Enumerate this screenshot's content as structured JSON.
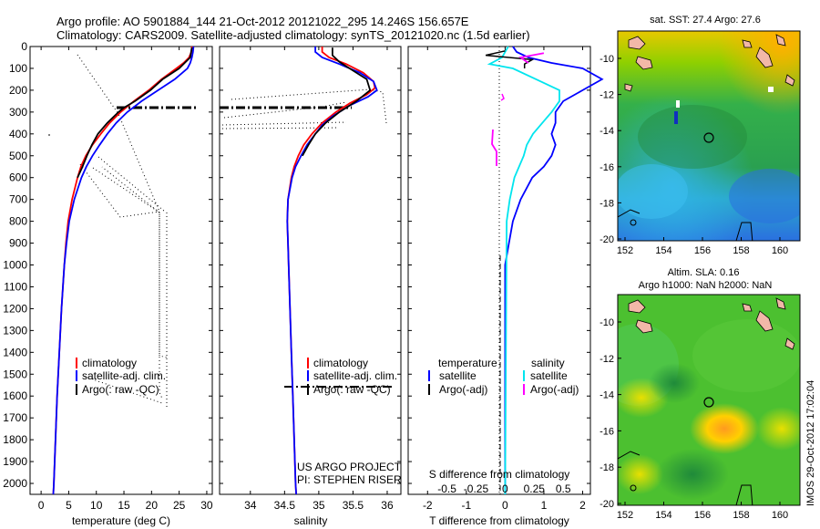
{
  "header": {
    "line1": "Argo profile: AO 5901884_144 21-Oct-2012 20121022_295 14.246S 156.657E",
    "line2": "Climatology: CARS2009. Satellite-adjusted climatology: synTS_20121020.nc (1.5d earlier)"
  },
  "colors": {
    "climatology": "#ff0000",
    "satellite": "#0000ff",
    "argo": "#000000",
    "sat_salinity": "#00e5ee",
    "argo_salinity": "#ff00ff",
    "land": "#f2b8a8"
  },
  "depth_axis": {
    "min": 0,
    "max": 2050,
    "ticks": [
      0,
      100,
      200,
      300,
      400,
      500,
      600,
      700,
      800,
      900,
      1000,
      1100,
      1200,
      1300,
      1400,
      1500,
      1600,
      1700,
      1800,
      1900,
      2000
    ]
  },
  "chart_data": [
    {
      "type": "line",
      "id": "temperature",
      "xlabel": "temperature (deg C)",
      "xlim": [
        -2,
        31
      ],
      "ylim": [
        2050,
        0
      ],
      "xticks": [
        0,
        5,
        10,
        15,
        20,
        25,
        30
      ],
      "legend": {
        "position": "bottom-right",
        "entries": [
          "climatology",
          "satellite-adj. clim.",
          "Argo(: raw -QC)"
        ]
      },
      "series": [
        {
          "name": "climatology",
          "depth": [
            0,
            25,
            50,
            75,
            100,
            150,
            200,
            250,
            300,
            350,
            400,
            450,
            500,
            550,
            600,
            700,
            800,
            900,
            1000,
            1200,
            1400,
            1600,
            1800,
            2000,
            2050
          ],
          "values": [
            27.3,
            27.2,
            26.8,
            25.8,
            24.5,
            21.8,
            19.5,
            16.8,
            14.4,
            12.4,
            10.8,
            9.3,
            8.1,
            7.2,
            6.6,
            5.6,
            4.9,
            4.5,
            4.2,
            3.7,
            3.3,
            2.9,
            2.6,
            2.3,
            2.2
          ]
        },
        {
          "name": "satellite-adj. clim.",
          "depth": [
            0,
            25,
            50,
            75,
            100,
            150,
            200,
            250,
            300,
            350,
            400,
            450,
            500,
            550,
            600,
            700,
            800,
            900,
            1000,
            1200,
            1400,
            1600,
            1800,
            2000,
            2050
          ],
          "values": [
            27.6,
            27.5,
            27.3,
            27.0,
            26.5,
            24.2,
            21.2,
            18.2,
            15.6,
            13.6,
            12.0,
            10.6,
            9.3,
            8.2,
            7.3,
            6.0,
            5.1,
            4.6,
            4.2,
            3.7,
            3.3,
            2.9,
            2.6,
            2.3,
            2.2
          ]
        },
        {
          "name": "Argo",
          "depth": [
            5,
            50,
            100,
            150,
            200,
            250,
            280,
            300,
            350,
            400,
            450,
            500,
            550,
            600
          ],
          "values": [
            27.3,
            27.0,
            25.0,
            22.0,
            19.8,
            17.0,
            15.0,
            14.0,
            12.0,
            10.3,
            9.2,
            8.3,
            7.5,
            6.6
          ]
        }
      ]
    },
    {
      "type": "line",
      "id": "salinity",
      "xlabel": "salinity",
      "xlim": [
        33.55,
        36.2
      ],
      "ylim": [
        2050,
        0
      ],
      "xticks": [
        34,
        34.5,
        35,
        35.5,
        36
      ],
      "xticklabels": [
        "34",
        "34.5",
        "35",
        "35.5",
        "36"
      ],
      "legend": {
        "position": "bottom-right",
        "entries": [
          "climatology",
          "satellite-adj. clim.",
          "Argo(: raw -QC)"
        ]
      },
      "annotations": [
        "US ARGO PROJECT",
        "PI: STEPHEN RISER"
      ],
      "series": [
        {
          "name": "climatology",
          "depth": [
            0,
            25,
            50,
            80,
            120,
            160,
            190,
            220,
            260,
            300,
            350,
            400,
            450,
            500,
            550,
            600,
            700,
            800,
            900,
            1000,
            1200,
            1400,
            1600,
            1800,
            2000,
            2050
          ],
          "values": [
            35.05,
            35.05,
            35.15,
            35.4,
            35.65,
            35.8,
            35.82,
            35.7,
            35.45,
            35.25,
            35.05,
            34.9,
            34.78,
            34.7,
            34.64,
            34.6,
            34.55,
            34.54,
            34.55,
            34.56,
            34.58,
            34.6,
            34.62,
            34.64,
            34.66,
            34.67
          ]
        },
        {
          "name": "satellite-adj. clim.",
          "depth": [
            0,
            25,
            50,
            80,
            120,
            160,
            200,
            230,
            270,
            320,
            360,
            400,
            450,
            500,
            550,
            600,
            700,
            800,
            900,
            1000,
            1200,
            1400,
            1600,
            1800,
            2000,
            2050
          ],
          "values": [
            34.95,
            34.95,
            35.05,
            35.3,
            35.6,
            35.8,
            35.85,
            35.72,
            35.45,
            35.2,
            35.05,
            34.95,
            34.83,
            34.74,
            34.66,
            34.61,
            34.55,
            34.54,
            34.55,
            34.56,
            34.58,
            34.6,
            34.62,
            34.64,
            34.66,
            34.67
          ]
        },
        {
          "name": "Argo",
          "depth": [
            5,
            40,
            70,
            100,
            150,
            200,
            250,
            300,
            350,
            400,
            450,
            500
          ],
          "values": [
            35.2,
            35.2,
            35.3,
            35.45,
            35.7,
            35.75,
            35.55,
            35.3,
            35.1,
            34.95,
            34.85,
            34.76
          ]
        }
      ]
    },
    {
      "type": "line",
      "id": "difference",
      "xlabel": "T difference from climatology",
      "xlabel_top": "S difference from climatology",
      "xlim": [
        -2.5,
        2.2
      ],
      "ylim": [
        2050,
        0
      ],
      "xticks": [
        -2,
        -1,
        0,
        1,
        2
      ],
      "xticks_s": [
        -0.5,
        -0.25,
        0,
        0.25,
        0.5
      ],
      "xticklabels_s": [
        "-0.5",
        "-0.25",
        "0",
        "0.25",
        "0.5"
      ],
      "legend": {
        "position": "bottom",
        "headers": [
          "temperature",
          "salinity"
        ],
        "entries": [
          "satellite",
          "Argo(-adj)",
          "satellite",
          "Argo(-adj)"
        ]
      },
      "series": [
        {
          "name": "T satellite",
          "depth": [
            0,
            25,
            50,
            75,
            100,
            150,
            200,
            250,
            300,
            350,
            400,
            450,
            500,
            550,
            600,
            700,
            800,
            900,
            1000,
            2050
          ],
          "values": [
            0.2,
            0.3,
            0.6,
            1.2,
            2.0,
            2.5,
            2.0,
            1.5,
            1.3,
            1.3,
            1.2,
            1.3,
            1.2,
            1.0,
            0.7,
            0.4,
            0.2,
            0.1,
            0.0,
            0.0
          ]
        },
        {
          "name": "T Argo(-adj)",
          "depth": [
            20,
            40,
            60,
            80,
            100
          ],
          "values": [
            0.0,
            -0.5,
            0.7,
            0.5,
            0.5
          ]
        },
        {
          "name": "S satellite",
          "depth": [
            0,
            50,
            80,
            100,
            150,
            200,
            250,
            300,
            350,
            400,
            450,
            500,
            600,
            700,
            800,
            2050
          ],
          "values": [
            0.02,
            -0.02,
            -0.1,
            0.05,
            0.2,
            0.35,
            0.35,
            0.3,
            0.24,
            0.18,
            0.14,
            0.12,
            0.06,
            0.03,
            0.01,
            0.0
          ]
        },
        {
          "name": "S Argo(-adj)",
          "depth": [
            30,
            50,
            75
          ],
          "values": [
            0.25,
            0.1,
            0.15
          ]
        }
      ]
    }
  ],
  "map_sst": {
    "title": "sat. SST: 27.4 Argo: 27.6",
    "xticks": [
      "152",
      "154",
      "156",
      "158",
      "160"
    ],
    "yticks": [
      "-10",
      "-12",
      "-14",
      "-16",
      "-18",
      "-20"
    ]
  },
  "map_sla": {
    "title1": "Altim. SLA: 0.16",
    "title2": "Argo h1000: NaN h2000: NaN",
    "xticks": [
      "152",
      "154",
      "156",
      "158",
      "160"
    ],
    "yticks": [
      "-10",
      "-12",
      "-14",
      "-16",
      "-18",
      "-20"
    ]
  },
  "footer": {
    "credit": "IMOS 29-Oct-2012 17:02:04"
  }
}
